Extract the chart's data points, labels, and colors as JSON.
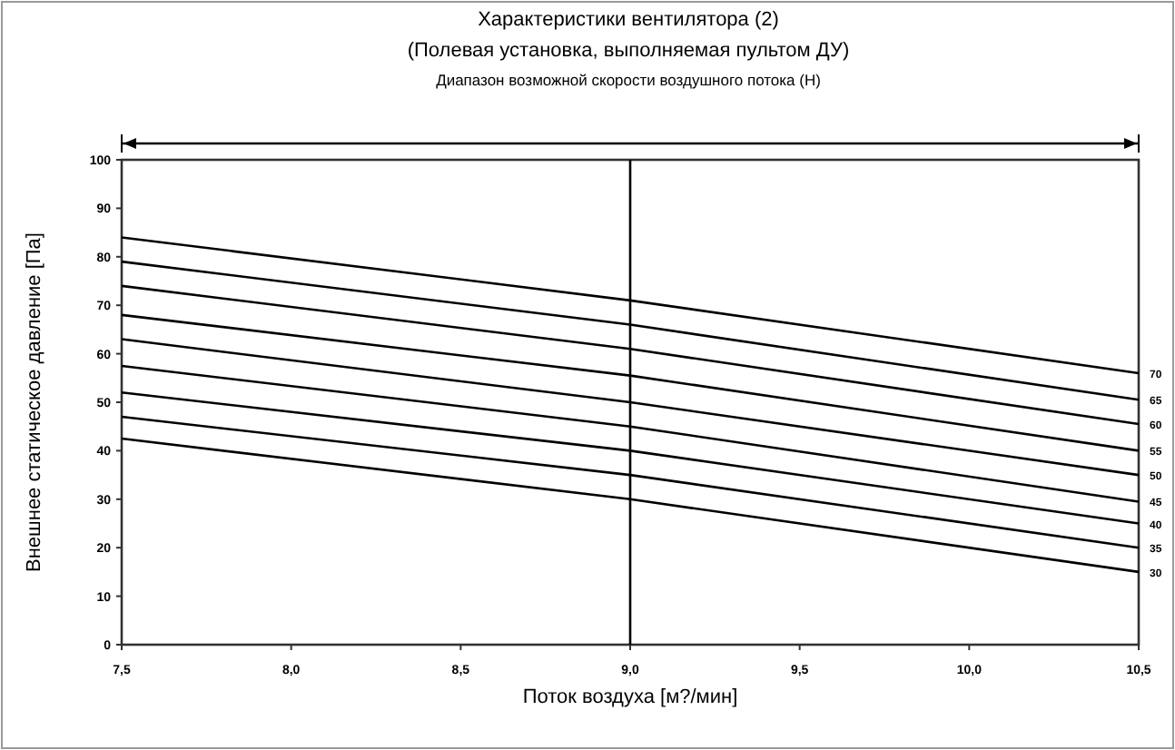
{
  "chart_data": {
    "type": "line",
    "title": "Характеристики вентилятора (2)",
    "subtitle": "(Полевая установка, выполняемая пультом ДУ)",
    "annotations": [
      "Диапазон возможной скорости воздушного потока (H)"
    ],
    "xlabel": "Поток воздуха [м?/мин]",
    "ylabel": "Внешнее статическое давление [Па]",
    "x": [
      7.5,
      9.0,
      10.5
    ],
    "xlim": [
      7.5,
      10.5
    ],
    "xticks": [
      {
        "value": 7.5,
        "label": "7,5"
      },
      {
        "value": 8,
        "label": "8,0"
      },
      {
        "value": 8.5,
        "label": "8,5"
      },
      {
        "value": 9,
        "label": "9,0"
      },
      {
        "value": 9.5,
        "label": "9,5"
      },
      {
        "value": 10,
        "label": "10,0"
      },
      {
        "value": 10.5,
        "label": "10,5"
      }
    ],
    "ylim": [
      0,
      100
    ],
    "yticks": [
      0,
      10,
      20,
      30,
      40,
      50,
      60,
      70,
      80,
      90,
      100
    ],
    "grid": false,
    "marker": "none",
    "line_style": "solid",
    "ref_lines": [
      {
        "axis": "x",
        "value": 9.0,
        "color": "#000000"
      }
    ],
    "series": [
      {
        "name": "70",
        "color": "#000000",
        "values": [
          84,
          71,
          56
        ]
      },
      {
        "name": "65",
        "color": "#000000",
        "values": [
          79,
          66,
          50.5
        ]
      },
      {
        "name": "60",
        "color": "#000000",
        "values": [
          74,
          61,
          45.5
        ]
      },
      {
        "name": "55",
        "color": "#000000",
        "values": [
          68,
          55.5,
          40
        ]
      },
      {
        "name": "50",
        "color": "#000000",
        "values": [
          63,
          50,
          35
        ]
      },
      {
        "name": "45",
        "color": "#000000",
        "values": [
          57.5,
          45,
          29.5
        ]
      },
      {
        "name": "40",
        "color": "#000000",
        "values": [
          52,
          40,
          25
        ]
      },
      {
        "name": "35",
        "color": "#000000",
        "values": [
          47,
          35,
          20
        ]
      },
      {
        "name": "30",
        "color": "#000000",
        "values": [
          42.5,
          30,
          15
        ]
      }
    ]
  }
}
